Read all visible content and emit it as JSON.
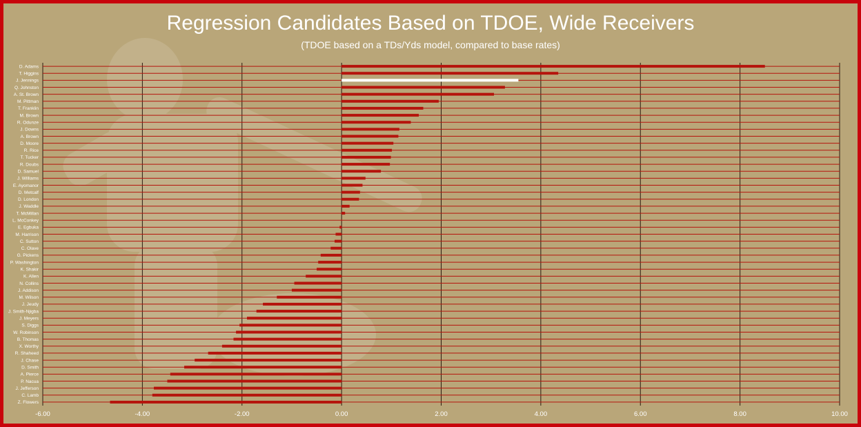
{
  "chart_data": {
    "type": "bar",
    "orientation": "horizontal",
    "title": "Regression Candidates Based on TDOE, Wide Receivers",
    "subtitle": "(TDOE based on a TDs/Yds model, compared to base rates)",
    "xlim": [
      -6,
      10
    ],
    "x_ticks": [
      "-6.00",
      "-4.00",
      "-2.00",
      "0.00",
      "2.00",
      "4.00",
      "6.00",
      "8.00",
      "10.00"
    ],
    "grid": "vertical",
    "colors": {
      "bar": "#b5140c",
      "highlight": "#ffffff",
      "gridline": "#2a1a10",
      "background": "#b9a679",
      "border": "#c8040c",
      "text": "#ffffff"
    },
    "highlighted_category": "J. Jennings",
    "categories": [
      "D. Adams",
      "T. Higgins",
      "J. Jennings",
      "Q. Johnston",
      "A. St. Brown",
      "M. Pittman",
      "T. Franklin",
      "M. Brown",
      "R. Odunze",
      "J. Downs",
      "A. Brown",
      "D. Moore",
      "R. Rice",
      "T. Tucker",
      "R. Doubs",
      "D. Samuel",
      "J. Williams",
      "E. Ayomanor",
      "D. Metcalf",
      "D. London",
      "J. Waddle",
      "T. McMillan",
      "L. McConkey",
      "E. Egbuka",
      "M. Harrison",
      "C. Sutton",
      "C. Olave",
      "G. Pickens",
      "P. Washington",
      "K. Shakir",
      "K. Allen",
      "N. Collins",
      "J. Addison",
      "M. Wilson",
      "J. Jeudy",
      "J. Smith-Njigba",
      "J. Meyers",
      "S. Diggs",
      "W. Robinson",
      "B. Thomas",
      "X. Worthy",
      "R. Shaheed",
      "J. Chase",
      "D. Smith",
      "A. Pierce",
      "P. Nacua",
      "J. Jefferson",
      "C. Lamb",
      "Z. Flowers"
    ],
    "values": [
      8.5,
      4.35,
      3.55,
      3.28,
      3.06,
      1.95,
      1.64,
      1.55,
      1.39,
      1.16,
      1.14,
      1.04,
      1.01,
      0.99,
      0.97,
      0.79,
      0.48,
      0.42,
      0.37,
      0.35,
      0.16,
      0.07,
      0.0,
      -0.04,
      -0.12,
      -0.14,
      -0.22,
      -0.42,
      -0.47,
      -0.5,
      -0.72,
      -0.95,
      -1.0,
      -1.3,
      -1.58,
      -1.71,
      -1.9,
      -2.05,
      -2.12,
      -2.17,
      -2.4,
      -2.68,
      -2.95,
      -3.16,
      -3.44,
      -3.5,
      -3.77,
      -3.8,
      -4.65
    ]
  }
}
